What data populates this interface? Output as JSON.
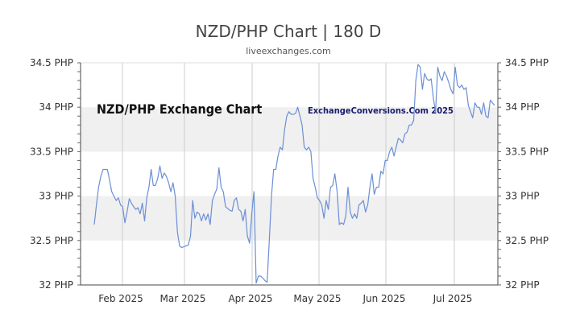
{
  "chart_data": {
    "type": "line",
    "title": "NZD/PHP Chart | 180 D",
    "subtitle": "liveexchanges.com",
    "inner_title": "NZD/PHP Exchange Chart",
    "watermark": "ExchangeConversions.Com 2025",
    "ylim": [
      32,
      34.5
    ],
    "y_ticks": [
      {
        "value": 32,
        "label": "32 PHP"
      },
      {
        "value": 32.5,
        "label": "32.5 PHP"
      },
      {
        "value": 33,
        "label": "33 PHP"
      },
      {
        "value": 33.5,
        "label": "33.5 PHP"
      },
      {
        "value": 34,
        "label": "34 PHP"
      },
      {
        "value": 34.5,
        "label": "34.5 PHP"
      }
    ],
    "x_ticks": [
      "Feb 2025",
      "Mar 2025",
      "Apr 2025",
      "May 2025",
      "Jun 2025",
      "Jul 2025"
    ],
    "line_color": "#6b8fd6",
    "band_color": "#f0f0f0",
    "series": [
      {
        "values": [
          32.68,
          32.9,
          33.1,
          33.22,
          33.3,
          33.3,
          33.3,
          33.18,
          33.05,
          33.0,
          32.95,
          32.98,
          32.9,
          32.88,
          32.7,
          32.82,
          32.97,
          32.92,
          32.88,
          32.85,
          32.87,
          32.8,
          32.92,
          32.72,
          32.98,
          33.1,
          33.3,
          33.12,
          33.12,
          33.2,
          33.34,
          33.2,
          33.26,
          33.22,
          33.15,
          33.05,
          33.15,
          33.0,
          32.6,
          32.44,
          32.42,
          32.43,
          32.44,
          32.45,
          32.55,
          32.95,
          32.75,
          32.82,
          32.8,
          32.72,
          32.8,
          32.73,
          32.8,
          32.68,
          32.95,
          33.02,
          33.08,
          33.32,
          33.1,
          33.05,
          32.88,
          32.86,
          32.84,
          32.83,
          32.95,
          32.98,
          32.85,
          32.83,
          32.72,
          32.85,
          32.55,
          32.47,
          32.8,
          33.05,
          32.02,
          32.1,
          32.1,
          32.08,
          32.05,
          32.03,
          32.5,
          33.0,
          33.3,
          33.3,
          33.45,
          33.55,
          33.52,
          33.75,
          33.9,
          33.95,
          33.92,
          33.92,
          33.93,
          34.0,
          33.9,
          33.8,
          33.55,
          33.52,
          33.55,
          33.5,
          33.2,
          33.1,
          32.98,
          32.95,
          32.9,
          32.75,
          32.95,
          32.85,
          33.1,
          33.12,
          33.25,
          33.05,
          32.68,
          32.7,
          32.68,
          32.78,
          33.1,
          32.82,
          32.75,
          32.8,
          32.75,
          32.9,
          32.92,
          32.95,
          32.82,
          32.9,
          33.1,
          33.25,
          33.02,
          33.1,
          33.1,
          33.28,
          33.25,
          33.4,
          33.4,
          33.5,
          33.55,
          33.45,
          33.55,
          33.65,
          33.63,
          33.6,
          33.7,
          33.72,
          33.8,
          33.8,
          33.85,
          34.3,
          34.48,
          34.45,
          34.2,
          34.38,
          34.32,
          34.3,
          34.32,
          34.1,
          33.95,
          34.45,
          34.35,
          34.3,
          34.4,
          34.35,
          34.28,
          34.2,
          34.15,
          34.45,
          34.25,
          34.22,
          34.25,
          34.2,
          34.22,
          34.02,
          33.95,
          33.88,
          34.05,
          34.0,
          34.0,
          33.92,
          34.05,
          33.9,
          33.88,
          34.08,
          34.05,
          34.02
        ]
      }
    ]
  }
}
